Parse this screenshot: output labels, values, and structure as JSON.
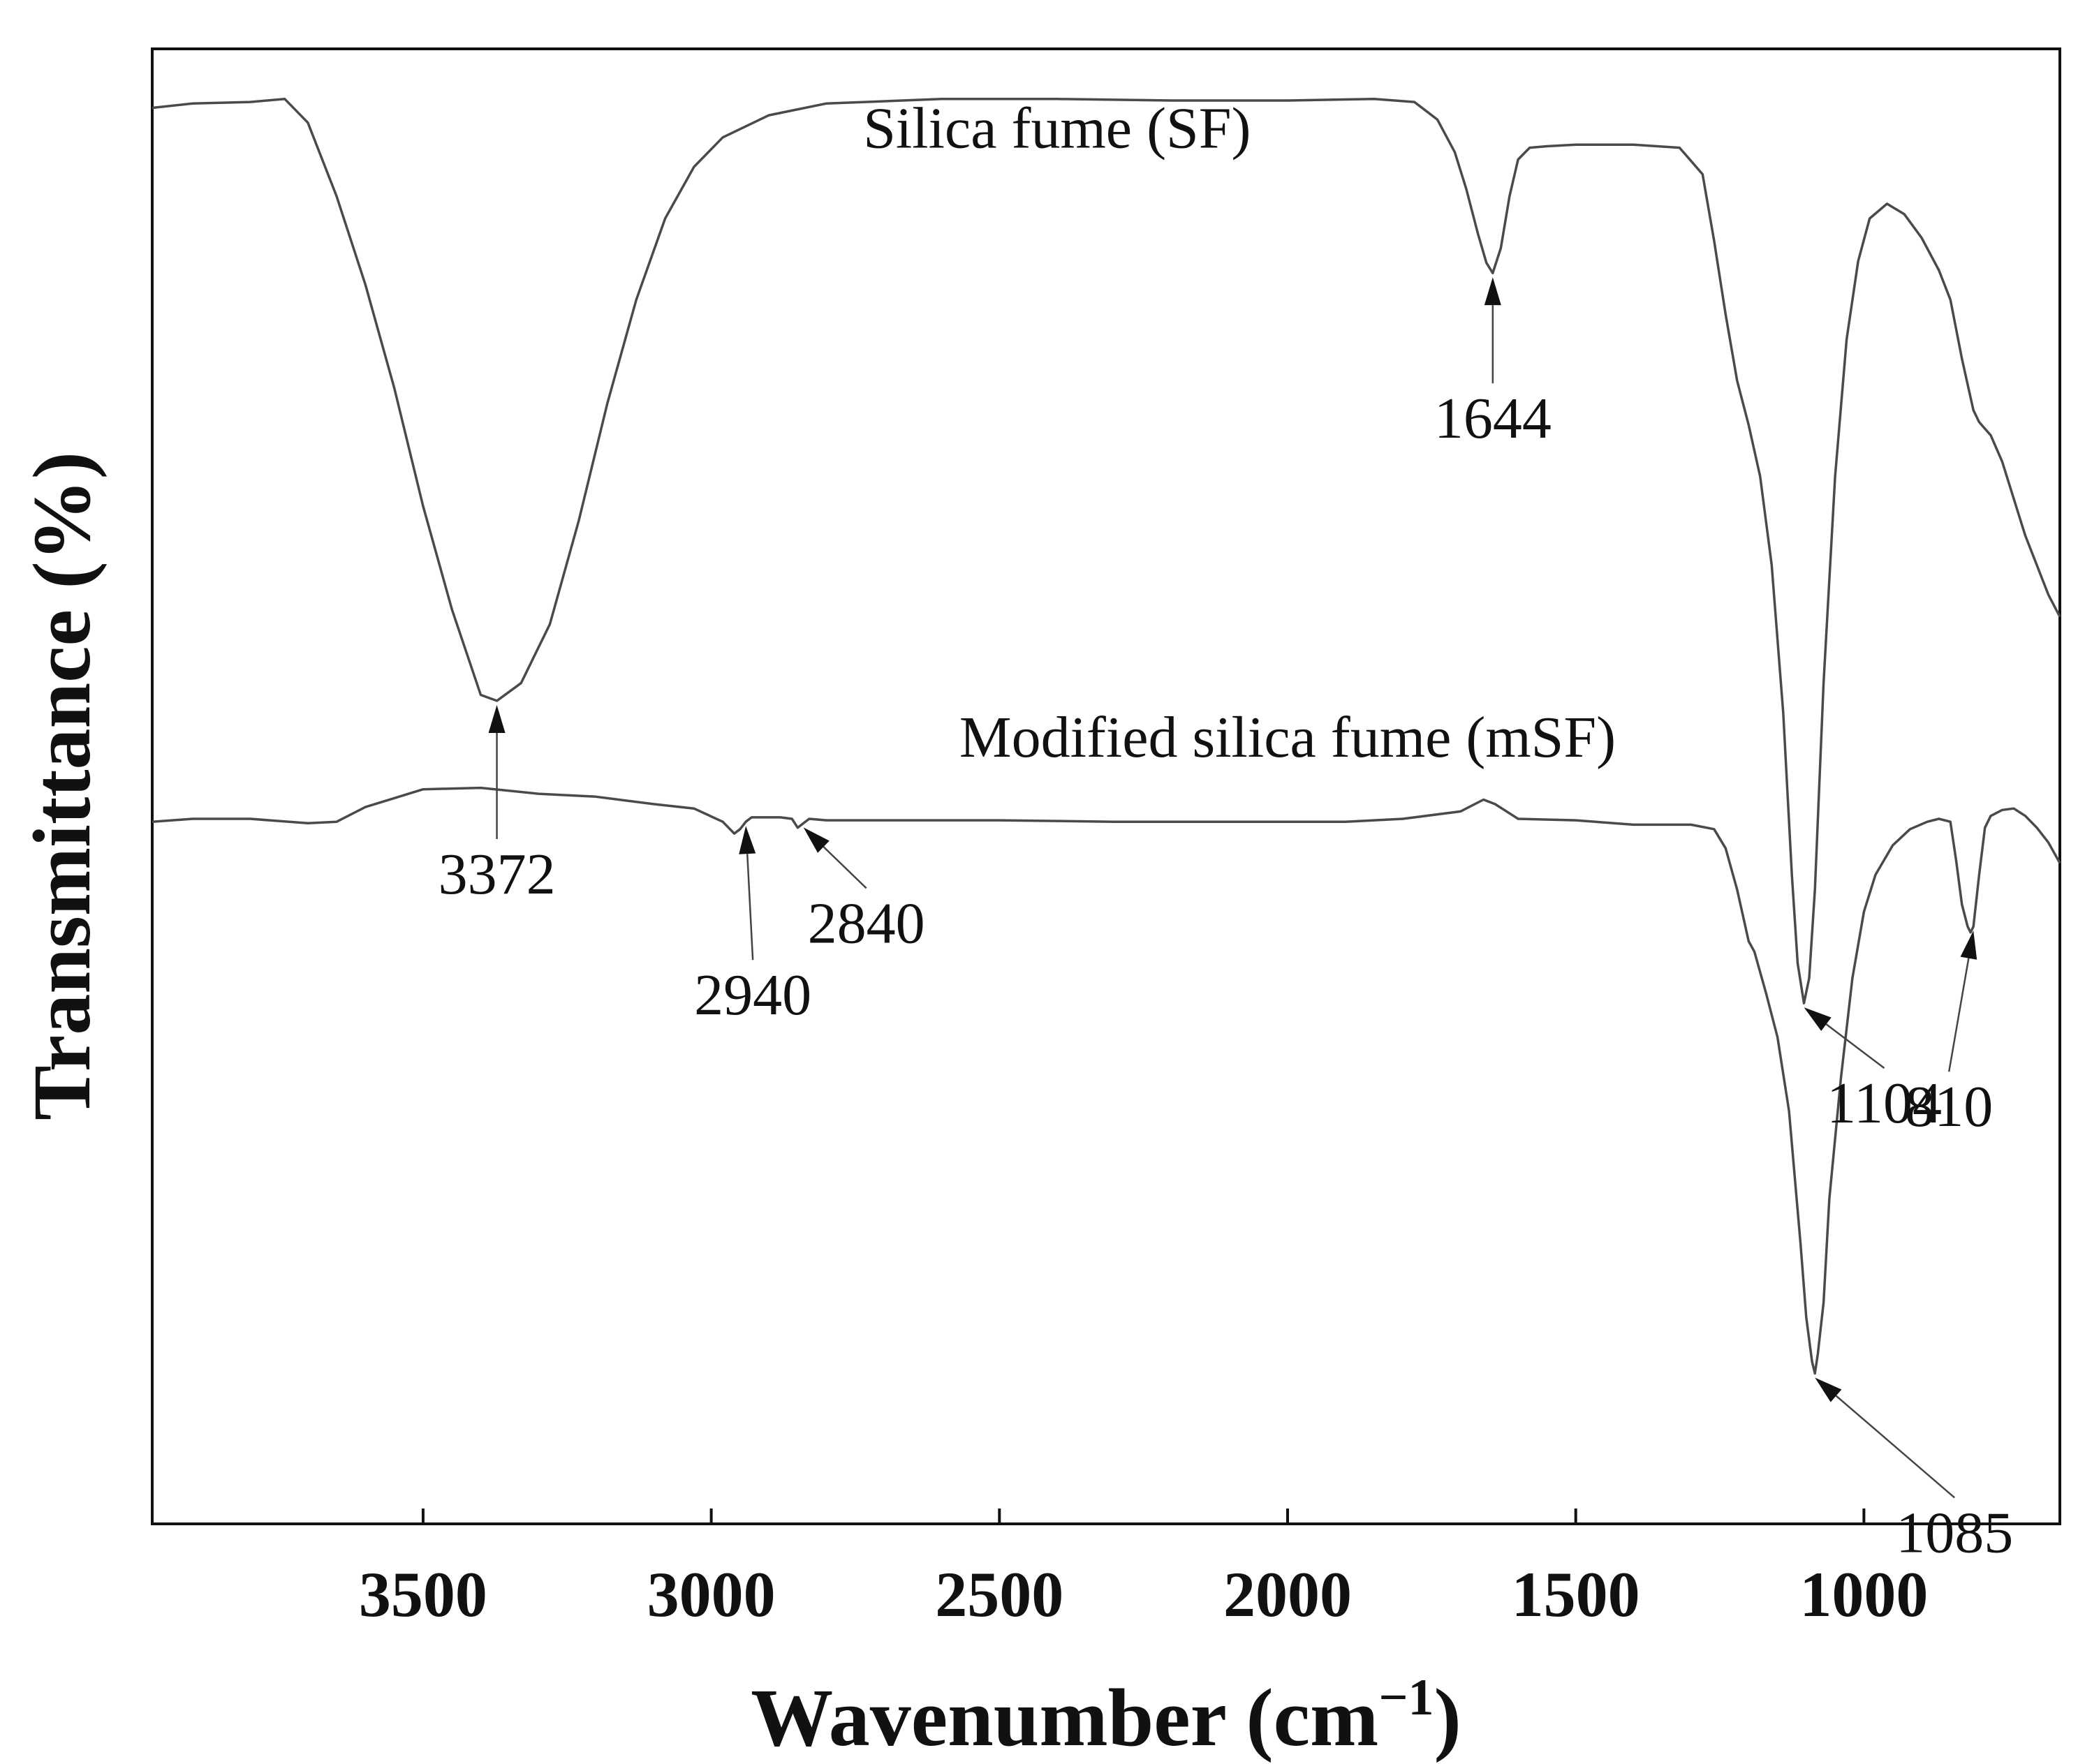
{
  "chart_data": {
    "type": "line",
    "title": "",
    "xlabel": "Wavenumber (cm−1)",
    "xlabel_main": "Wavenumber (cm",
    "xlabel_sup": "−1",
    "xlabel_close": ")",
    "ylabel": "Transmittance (%)",
    "x_reversed": true,
    "xlim": [
      3970,
      660
    ],
    "ylim": [
      0,
      100
    ],
    "x_ticks": [
      3500,
      3000,
      2500,
      2000,
      1500,
      1000
    ],
    "x_tick_labels": [
      "3500",
      "3000",
      "2500",
      "2000",
      "1500",
      "1000"
    ],
    "y_ticks_shown": false,
    "series": [
      {
        "name": "Silica fume (SF)",
        "x": [
          3970,
          3900,
          3800,
          3740,
          3700,
          3650,
          3600,
          3550,
          3500,
          3450,
          3400,
          3372,
          3330,
          3280,
          3230,
          3180,
          3130,
          3080,
          3030,
          2980,
          2900,
          2800,
          2600,
          2400,
          2200,
          2000,
          1850,
          1780,
          1740,
          1710,
          1690,
          1670,
          1655,
          1644,
          1630,
          1615,
          1600,
          1580,
          1550,
          1500,
          1400,
          1320,
          1280,
          1260,
          1240,
          1220,
          1200,
          1180,
          1160,
          1140,
          1125,
          1115,
          1104,
          1095,
          1085,
          1070,
          1050,
          1030,
          1010,
          990,
          960,
          930,
          900,
          870,
          850,
          830,
          810,
          800,
          780,
          760,
          740,
          720,
          700,
          680,
          660
        ],
        "values": [
          96,
          96.3,
          96.4,
          96.6,
          95,
          90,
          84,
          77,
          69,
          62,
          56.2,
          55.8,
          57,
          61,
          68,
          76,
          83,
          88.5,
          92,
          94,
          95.5,
          96.3,
          96.6,
          96.6,
          96.5,
          96.5,
          96.6,
          96.4,
          95.2,
          93,
          90.5,
          87.5,
          85.5,
          84.8,
          86.5,
          90,
          92.5,
          93.3,
          93.4,
          93.5,
          93.5,
          93.3,
          91.5,
          87,
          82,
          77.5,
          74.5,
          71,
          65,
          55,
          44,
          38,
          35.3,
          37,
          43,
          57,
          71,
          80.3,
          85.6,
          88.5,
          89.5,
          88.8,
          87.2,
          85,
          83,
          79,
          75.5,
          74.7,
          73.8,
          72,
          69.5,
          67,
          65,
          63,
          61.5
        ]
      },
      {
        "name": "Modified silica fume (mSF)",
        "x": [
          3970,
          3900,
          3800,
          3700,
          3650,
          3600,
          3500,
          3400,
          3300,
          3200,
          3100,
          3030,
          2980,
          2960,
          2950,
          2940,
          2930,
          2910,
          2880,
          2860,
          2850,
          2840,
          2830,
          2800,
          2700,
          2500,
          2300,
          2100,
          2000,
          1900,
          1800,
          1700,
          1660,
          1640,
          1600,
          1500,
          1400,
          1300,
          1260,
          1240,
          1220,
          1200,
          1190,
          1170,
          1150,
          1130,
          1110,
          1100,
          1090,
          1085,
          1080,
          1070,
          1060,
          1040,
          1020,
          1000,
          980,
          950,
          920,
          890,
          870,
          850,
          840,
          830,
          820,
          815,
          810,
          800,
          790,
          780,
          760,
          740,
          720,
          700,
          680,
          660
        ],
        "values": [
          47.6,
          47.8,
          47.8,
          47.5,
          47.6,
          48.6,
          49.8,
          49.9,
          49.5,
          49.3,
          48.8,
          48.5,
          47.6,
          46.8,
          47.1,
          47.6,
          47.9,
          47.9,
          47.9,
          47.8,
          47.2,
          47.5,
          47.8,
          47.7,
          47.7,
          47.7,
          47.6,
          47.6,
          47.6,
          47.6,
          47.8,
          48.3,
          49.1,
          48.8,
          47.8,
          47.7,
          47.4,
          47.4,
          47.1,
          45.8,
          43,
          39.5,
          38.8,
          36,
          33,
          28,
          19,
          14,
          11,
          10.2,
          11.5,
          15,
          22,
          30.2,
          37,
          41.5,
          44,
          46,
          47.1,
          47.6,
          47.8,
          47.6,
          45,
          42,
          40.5,
          40.1,
          40.5,
          44,
          47.2,
          48,
          48.4,
          48.5,
          48,
          47.2,
          46.2,
          44.8
        ]
      }
    ],
    "series_labels": [
      {
        "text": "Silica fume (SF)",
        "x": 2400,
        "y": 93.3
      },
      {
        "text": "Modified silica fume (mSF)",
        "x": 2000,
        "y": 52
      }
    ],
    "peak_annotations": [
      {
        "label": "3372",
        "series": 0,
        "x": 3372
      },
      {
        "label": "1644",
        "series": 0,
        "x": 1644
      },
      {
        "label": "1104",
        "series": 0,
        "x": 1104
      },
      {
        "label": "2940",
        "series": 1,
        "x": 2940
      },
      {
        "label": "2840",
        "series": 1,
        "x": 2840
      },
      {
        "label": "810",
        "series": 1,
        "x": 810
      },
      {
        "label": "1085",
        "series": 1,
        "x": 1085
      }
    ],
    "grid": false,
    "legend": "none"
  }
}
